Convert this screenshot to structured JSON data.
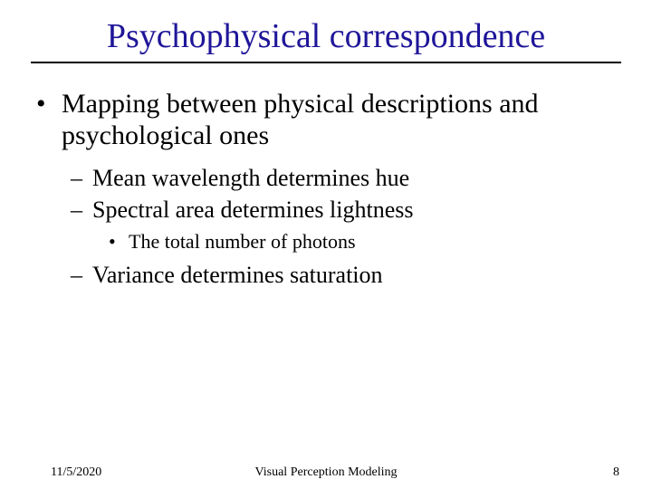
{
  "colors": {
    "title": "#1f1699",
    "underline": "#000000",
    "body": "#000000",
    "footer": "#000000",
    "background": "#ffffff"
  },
  "title": "Psychophysical correspondence",
  "bullets": {
    "level1": {
      "marker": "•",
      "text": "Mapping between physical descriptions and psychological ones"
    },
    "level2a": {
      "marker": "–",
      "text": "Mean wavelength determines hue"
    },
    "level2b": {
      "marker": "–",
      "text": "Spectral area determines lightness"
    },
    "level3": {
      "marker": "•",
      "text": "The total number of photons"
    },
    "level2c": {
      "marker": "–",
      "text": "Variance determines saturation"
    }
  },
  "footer": {
    "date": "11/5/2020",
    "center": "Visual Perception Modeling",
    "page": "8"
  }
}
